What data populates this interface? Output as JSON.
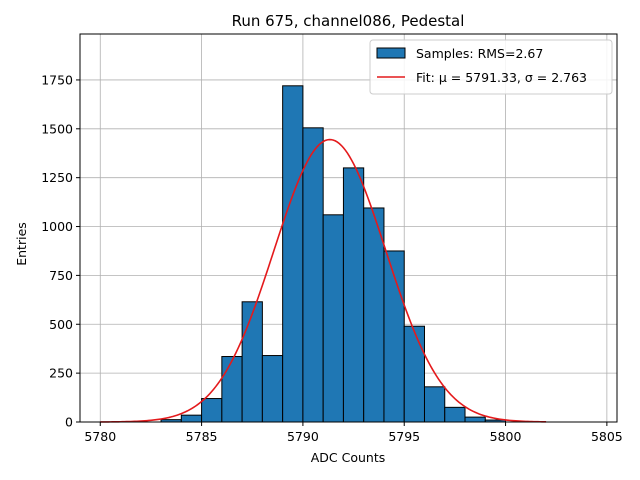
{
  "chart_data": {
    "type": "bar",
    "title": "Run 675, channel086, Pedestal",
    "xlabel": "ADC Counts",
    "ylabel": "Entries",
    "xlim": [
      5779,
      5805.5
    ],
    "ylim": [
      0,
      1985
    ],
    "xticks": [
      5780,
      5785,
      5790,
      5795,
      5800,
      5805
    ],
    "yticks": [
      0,
      250,
      500,
      750,
      1000,
      1250,
      1500,
      1750
    ],
    "grid": true,
    "legend_position": "top-right",
    "colors": {
      "bars": "#1f77b4",
      "bar_edge": "#000000",
      "fit": "#e41a1c",
      "grid": "#b0b0b0"
    },
    "series": [
      {
        "name": "Samples: RMS=2.67",
        "type": "bar",
        "bin_width": 1,
        "bins": [
          5780,
          5781,
          5782,
          5783,
          5784,
          5785,
          5786,
          5787,
          5788,
          5789,
          5790,
          5791,
          5792,
          5793,
          5794,
          5795,
          5796,
          5797,
          5798,
          5799
        ],
        "values": [
          0,
          0,
          0,
          12,
          35,
          120,
          335,
          615,
          340,
          1720,
          1505,
          1060,
          1300,
          1095,
          875,
          490,
          180,
          75,
          25,
          10
        ]
      },
      {
        "name": "Fit: μ = 5791.33, σ = 2.763",
        "type": "line",
        "mu": 5791.33,
        "sigma": 2.763,
        "amplitude": 1445,
        "x_range": [
          5780,
          5802
        ]
      }
    ]
  }
}
